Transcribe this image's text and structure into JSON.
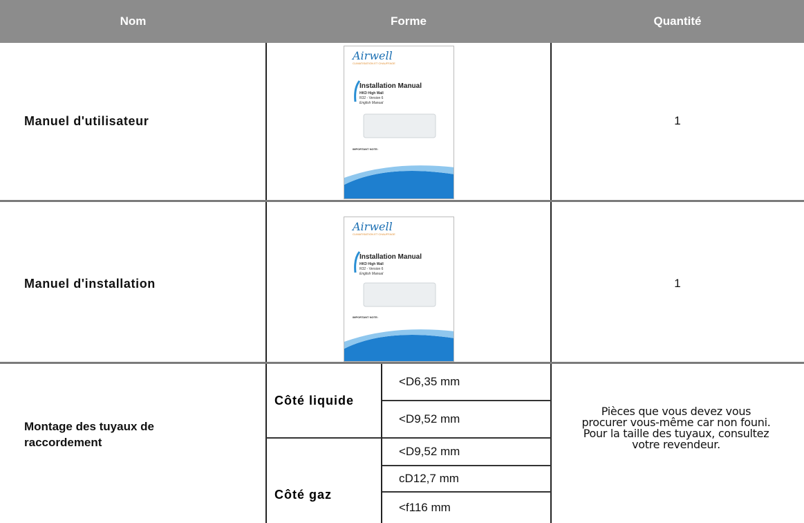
{
  "header": [
    "Nom",
    "Forme",
    "Quantité"
  ],
  "rows": [
    {
      "name": "Manuel d'utilisateur",
      "cover": {
        "brand": "Airwell",
        "tagline": "CLIMATISATION ET CHAUFFAGE",
        "title": "Installation Manual",
        "model": "HKD High Wall",
        "version": "R32 - Version 6",
        "language": "English Manual",
        "note": "IMPORTANT NOTE:"
      },
      "quantity": "1"
    },
    {
      "name": "Manuel d'installation",
      "cover": {
        "brand": "Airwell",
        "tagline": "CLIMATISATION ET CHAUFFAGE",
        "title": "Installation Manual",
        "model": "HKD High Wall",
        "version": "R32 - Version 6",
        "language": "English Manual",
        "note": "IMPORTANT NOTE:"
      },
      "quantity": "1"
    },
    {
      "name": "Montage des tuyaux de raccordement",
      "groups": [
        {
          "side": "Côté liquide",
          "sizes": [
            "<D6,35 mm",
            "<D9,52 mm"
          ]
        },
        {
          "side": "Côté gaz",
          "sizes": [
            "<D9,52 mm",
            "cD12,7 mm",
            "<f116 mm"
          ]
        }
      ],
      "quantity": "Pièces que vous devez vous procurer vous-même car non founi. Pour la taille des tuyaux, consultez votre revendeur."
    }
  ]
}
